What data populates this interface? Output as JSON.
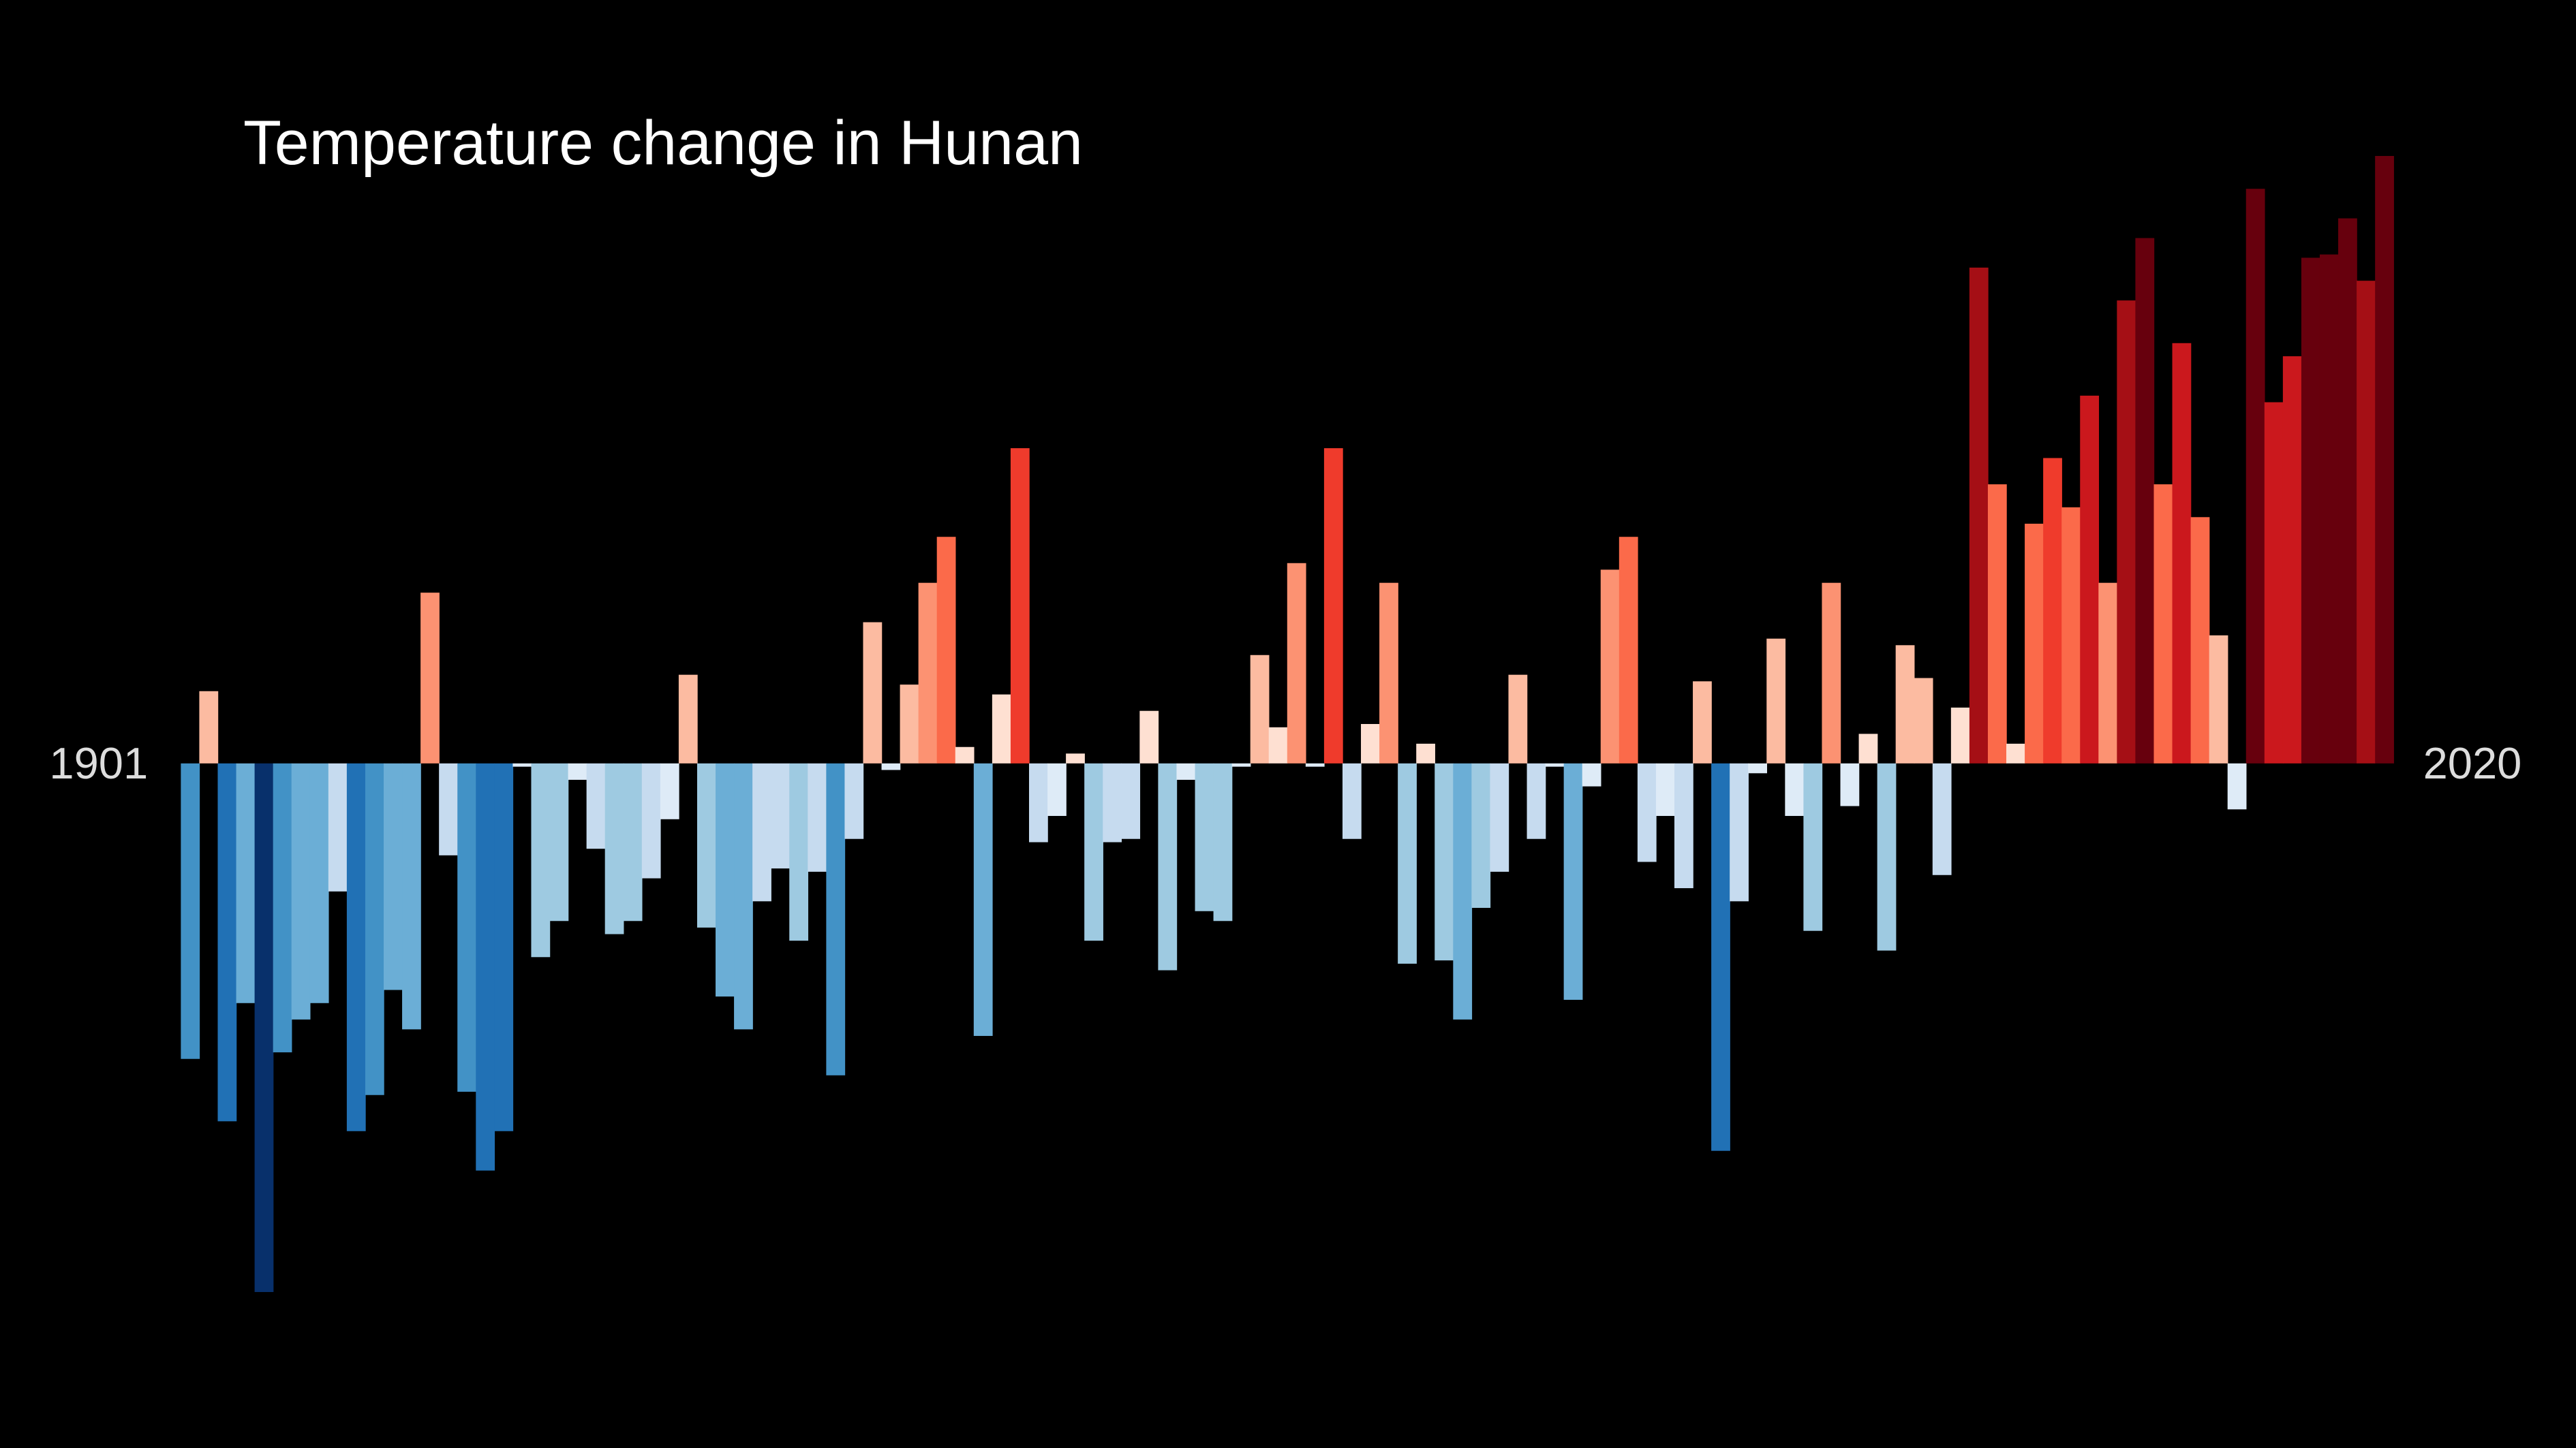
{
  "chart_data": {
    "type": "bar",
    "title": "Temperature change in Hunan",
    "categories": [
      "1901",
      null,
      null,
      null,
      null,
      null,
      null,
      null,
      null,
      null,
      null,
      null,
      null,
      null,
      null,
      null,
      null,
      null,
      null,
      null,
      null,
      null,
      null,
      null,
      null,
      null,
      null,
      null,
      null,
      null,
      null,
      null,
      null,
      null,
      null,
      null,
      null,
      null,
      null,
      null,
      null,
      null,
      null,
      null,
      null,
      null,
      null,
      null,
      null,
      null,
      null,
      null,
      null,
      null,
      null,
      null,
      null,
      null,
      null,
      null,
      null,
      null,
      null,
      null,
      null,
      null,
      null,
      null,
      null,
      null,
      null,
      null,
      null,
      null,
      null,
      null,
      null,
      null,
      null,
      null,
      null,
      null,
      null,
      null,
      null,
      null,
      null,
      null,
      null,
      null,
      null,
      null,
      null,
      null,
      null,
      null,
      null,
      null,
      null,
      null,
      null,
      null,
      null,
      null,
      null,
      null,
      null,
      null,
      null,
      null,
      null,
      null,
      null,
      null,
      null,
      null,
      null,
      null,
      null,
      "2020"
    ],
    "values": [
      -0.9,
      0.22,
      -1.09,
      -0.73,
      -1.61,
      -0.88,
      -0.78,
      -0.73,
      -0.39,
      -1.12,
      -1.01,
      -0.69,
      -0.81,
      0.52,
      -0.28,
      -1.0,
      -1.24,
      -1.12,
      -0.01,
      -0.59,
      -0.48,
      -0.05,
      -0.26,
      -0.52,
      -0.48,
      -0.35,
      -0.17,
      0.27,
      -0.5,
      -0.71,
      -0.81,
      -0.42,
      -0.32,
      -0.54,
      -0.33,
      -0.95,
      -0.23,
      0.43,
      -0.02,
      0.24,
      0.55,
      0.69,
      0.05,
      -0.83,
      0.21,
      0.96,
      -0.24,
      -0.16,
      0.03,
      -0.54,
      -0.24,
      -0.23,
      0.16,
      -0.63,
      -0.05,
      -0.45,
      -0.48,
      -0.01,
      0.33,
      0.11,
      0.61,
      -0.01,
      0.96,
      -0.23,
      0.12,
      0.55,
      -0.61,
      0.06,
      -0.6,
      -0.78,
      -0.44,
      -0.33,
      0.27,
      -0.23,
      -0.01,
      -0.72,
      -0.07,
      0.59,
      0.69,
      -0.3,
      -0.16,
      -0.38,
      0.25,
      -1.18,
      -0.42,
      -0.03,
      0.38,
      -0.16,
      -0.51,
      0.55,
      -0.13,
      0.09,
      -0.57,
      0.36,
      0.26,
      -0.34,
      0.17,
      1.51,
      0.85,
      0.06,
      0.73,
      0.93,
      0.78,
      1.12,
      0.55,
      1.41,
      1.6,
      0.85,
      1.28,
      0.75,
      0.39,
      -0.14,
      1.75,
      1.1,
      1.24,
      1.54,
      1.55,
      1.66,
      1.47,
      1.85
    ],
    "colors_negative": [
      "#deebf7",
      "#c6dbef",
      "#9ecae1",
      "#6baed6",
      "#4292c6",
      "#2171b5",
      "#08519c",
      "#08306b"
    ],
    "colors_positive": [
      "#fee0d2",
      "#fcbba1",
      "#fc9272",
      "#fb6a4a",
      "#ef3b2c",
      "#cb181d",
      "#a50f15",
      "#67000d"
    ],
    "background": "#000000"
  }
}
